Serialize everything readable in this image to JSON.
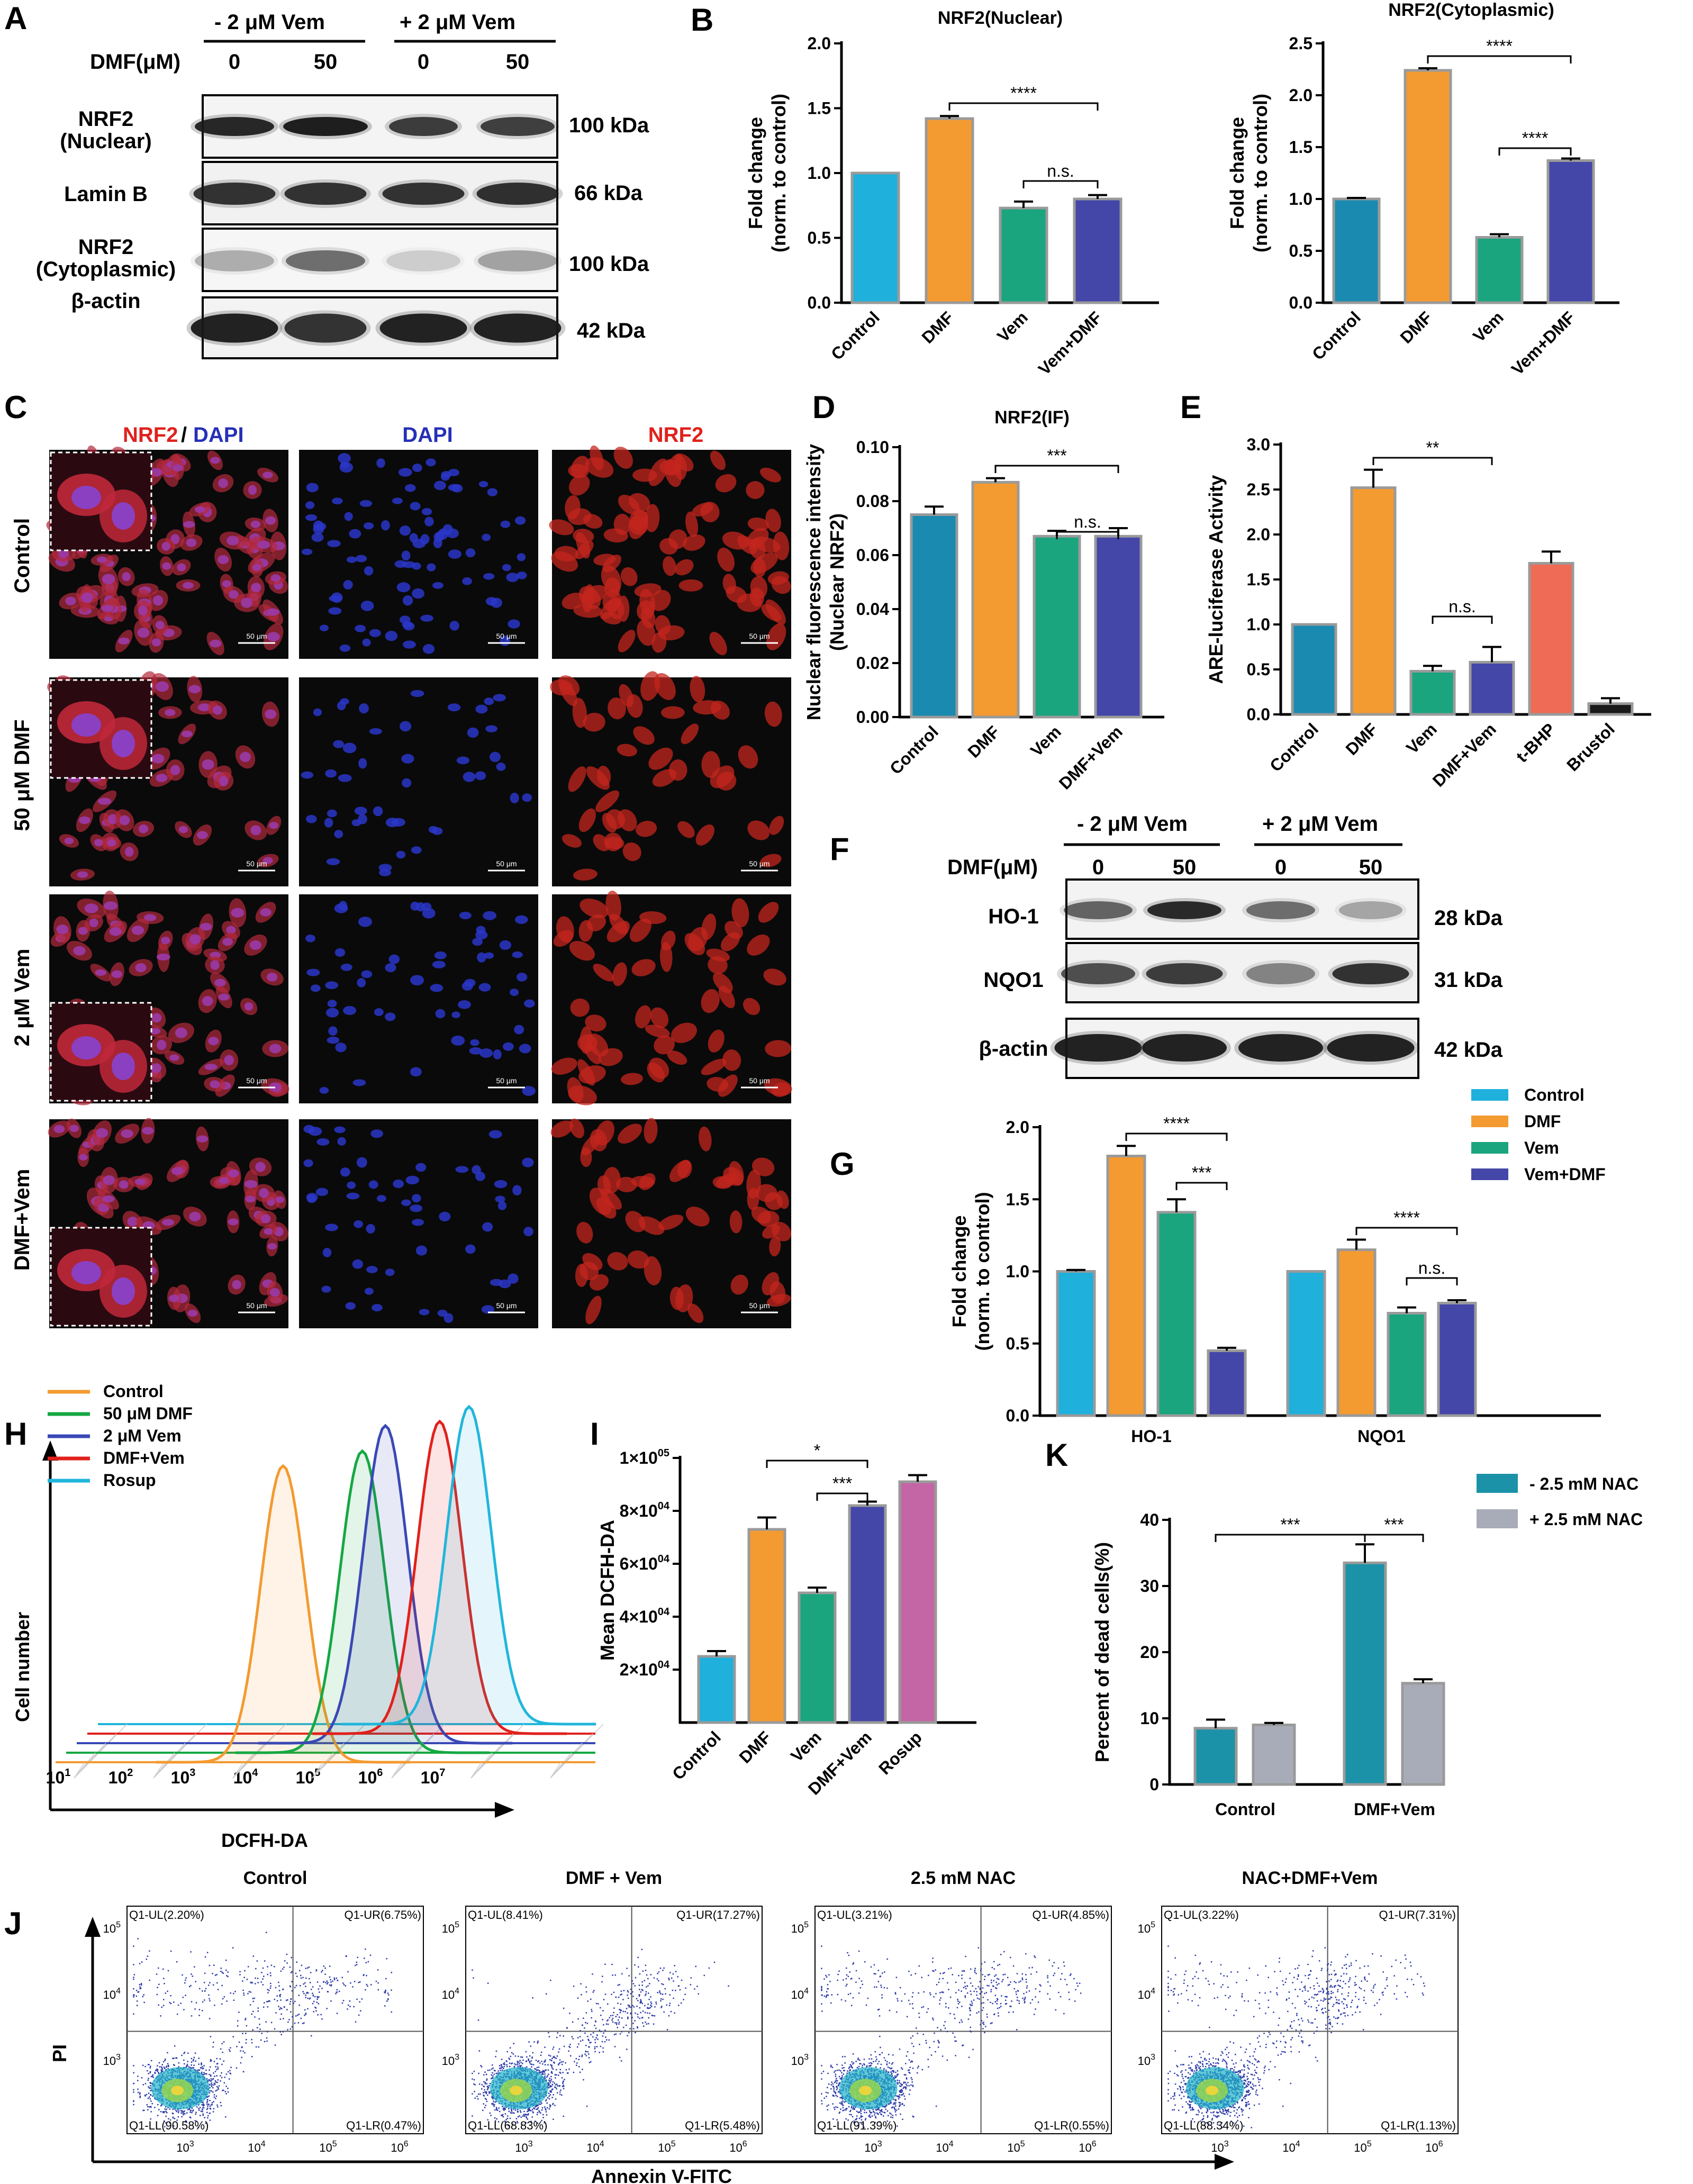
{
  "panels": {
    "A": "A",
    "B": "B",
    "C": "C",
    "D": "D",
    "E": "E",
    "F": "F",
    "G": "G",
    "H": "H",
    "I": "I",
    "J": "J",
    "K": "K"
  },
  "colors": {
    "control": "#1fb0dc",
    "dmf": "#f39a30",
    "vem": "#1aa57f",
    "vemdmf": "#4447a8",
    "tbhp": "#ef6b55",
    "brustol": "#1a1a1a",
    "rosup": "#c466a6",
    "control_dark": "#1a8ab0",
    "nac_minus": "#1b92a8",
    "nac_plus": "#a8acb8"
  },
  "blot_A": {
    "groups": [
      "- 2 μM Vem",
      "+ 2 μM Vem"
    ],
    "dmf_label": "DMF(μM)",
    "doses": [
      "0",
      "50",
      "0",
      "50"
    ],
    "rows": [
      {
        "label1": "NRF2",
        "label2": "(Nuclear)",
        "kda": "100 kDa"
      },
      {
        "label1": "Lamin B",
        "label2": "",
        "kda": "66 kDa"
      },
      {
        "label1": "NRF2",
        "label2": "(Cytoplasmic)",
        "kda": "100 kDa"
      },
      {
        "label1": "β-actin",
        "label2": "",
        "kda": "42 kDa"
      }
    ]
  },
  "blot_F": {
    "groups": [
      "- 2 μM Vem",
      "+ 2 μM Vem"
    ],
    "dmf_label": "DMF(μM)",
    "doses": [
      "0",
      "50",
      "0",
      "50"
    ],
    "rows": [
      {
        "label": "HO-1",
        "kda": "28 kDa"
      },
      {
        "label": "NQO1",
        "kda": "31 kDa"
      },
      {
        "label": "β-actin",
        "kda": "42 kDa"
      }
    ]
  },
  "micro_C": {
    "columns": [
      "NRF2",
      "/",
      "DAPI",
      "DAPI",
      "NRF2"
    ],
    "rows": [
      "Control",
      "50 μM DMF",
      "2 μM Vem",
      "DMF+Vem"
    ],
    "scale": "50 μm"
  },
  "chart_data": [
    {
      "id": "B1",
      "type": "bar",
      "title": "NRF2(Nuclear)",
      "ylabel": [
        "Fold change",
        "(norm. to control)"
      ],
      "categories": [
        "Control",
        "DMF",
        "Vem",
        "Vem+DMF"
      ],
      "values": [
        1.0,
        1.42,
        0.73,
        0.8
      ],
      "errors": [
        0,
        0.02,
        0.05,
        0.03
      ],
      "ylim": [
        0,
        2.0
      ],
      "ticks": [
        "0.0",
        "0.5",
        "1.0",
        "1.5",
        "2.0"
      ],
      "sig": [
        "****",
        "n.s."
      ]
    },
    {
      "id": "B2",
      "type": "bar",
      "title": "NRF2(Cytoplasmic)",
      "ylabel": [
        "Fold change",
        "(norm. to control)"
      ],
      "categories": [
        "Control",
        "DMF",
        "Vem",
        "Vem+DMF"
      ],
      "values": [
        1.0,
        2.24,
        0.63,
        1.37
      ],
      "errors": [
        0.01,
        0.02,
        0.03,
        0.02
      ],
      "ylim": [
        0,
        2.5
      ],
      "ticks": [
        "0.0",
        "0.5",
        "1.0",
        "1.5",
        "2.0",
        "2.5"
      ],
      "sig": [
        "****",
        "****"
      ]
    },
    {
      "id": "D",
      "type": "bar",
      "title": "NRF2(IF)",
      "ylabel": [
        "Nuclear fluorescence intensity",
        "(Nuclear NRF2)"
      ],
      "categories": [
        "Control",
        "DMF",
        "Vem",
        "DMF+Vem"
      ],
      "values": [
        0.075,
        0.087,
        0.067,
        0.067
      ],
      "errors": [
        0.003,
        0.0015,
        0.002,
        0.003
      ],
      "ylim": [
        0,
        0.1
      ],
      "ticks": [
        "0.00",
        "0.02",
        "0.04",
        "0.06",
        "0.08",
        "0.10"
      ],
      "sig": [
        "***",
        "n.s."
      ]
    },
    {
      "id": "E",
      "type": "bar",
      "title": "",
      "ylabel": [
        "ARE-luciferase Activity"
      ],
      "categories": [
        "Control",
        "DMF",
        "Vem",
        "DMF+Vem",
        "t-BHP",
        "Brustol"
      ],
      "values": [
        1.0,
        2.52,
        0.48,
        0.58,
        1.68,
        0.12
      ],
      "errors": [
        0,
        0.2,
        0.06,
        0.17,
        0.13,
        0.06
      ],
      "ylim": [
        0,
        3.0
      ],
      "ticks": [
        "0.0",
        "0.5",
        "1.0",
        "1.5",
        "2.0",
        "2.5",
        "3.0"
      ],
      "sig": [
        "**",
        "n.s."
      ]
    },
    {
      "id": "G",
      "type": "bar",
      "title": "",
      "ylabel": [
        "Fold change",
        "(norm. to control)"
      ],
      "categories": [
        "HO-1",
        "NQO1"
      ],
      "series": [
        {
          "name": "Control",
          "values": [
            1.0,
            1.0
          ],
          "errors": [
            0.01,
            0
          ]
        },
        {
          "name": "DMF",
          "values": [
            1.8,
            1.15
          ],
          "errors": [
            0.07,
            0.07
          ]
        },
        {
          "name": "Vem",
          "values": [
            1.41,
            0.71
          ],
          "errors": [
            0.09,
            0.04
          ]
        },
        {
          "name": "Vem+DMF",
          "values": [
            0.45,
            0.78
          ],
          "errors": [
            0.02,
            0.02
          ]
        }
      ],
      "ylim": [
        0,
        2.0
      ],
      "ticks": [
        "0.0",
        "0.5",
        "1.0",
        "1.5",
        "2.0"
      ],
      "sig": [
        "****",
        "***",
        "****",
        "n.s."
      ]
    },
    {
      "id": "H",
      "type": "line",
      "xlabel": "DCFH-DA",
      "ylabel": "Cell number",
      "series": [
        {
          "name": "Control",
          "peak_log": 4.6
        },
        {
          "name": "50 μM DMF",
          "peak_log": 5.7
        },
        {
          "name": "2 μM Vem",
          "peak_log": 5.9
        },
        {
          "name": "DMF+Vem",
          "peak_log": 6.6
        },
        {
          "name": "Rosup",
          "peak_log": 6.9
        }
      ],
      "xticks": [
        "10",
        "10",
        "10",
        "10",
        "10",
        "10",
        "10"
      ],
      "xexp": [
        "1",
        "2",
        "3",
        "4",
        "5",
        "6",
        "7"
      ]
    },
    {
      "id": "I",
      "type": "bar",
      "ylabel": "Mean DCFH-DA",
      "categories": [
        "Control",
        "DMF",
        "Vem",
        "DMF+Vem",
        "Rosup"
      ],
      "values": [
        25000,
        73000,
        49000,
        82000,
        91000
      ],
      "errors": [
        2000,
        4500,
        2000,
        1500,
        2500
      ],
      "ylim": [
        0,
        100000
      ],
      "ticks": [
        "2×10",
        "4×10",
        "6×10",
        "8×10",
        "1×10"
      ],
      "tickexp": [
        "04",
        "04",
        "04",
        "04",
        "05"
      ],
      "sig": [
        "*",
        "***"
      ]
    },
    {
      "id": "K",
      "type": "bar",
      "ylabel": "Percent of dead cells(%)",
      "categories": [
        "Control",
        "DMF+Vem"
      ],
      "series": [
        {
          "name": "-  2.5 mM NAC",
          "values": [
            8.5,
            33.5
          ],
          "errors": [
            1.3,
            2.8
          ]
        },
        {
          "name": "+ 2.5 mM NAC",
          "values": [
            9.0,
            15.3
          ],
          "errors": [
            0.3,
            0.6
          ]
        }
      ],
      "ylim": [
        0,
        40
      ],
      "ticks": [
        "0",
        "10",
        "20",
        "30",
        "40"
      ],
      "sig": [
        "***",
        "***"
      ]
    },
    {
      "id": "J",
      "type": "scatter",
      "xlabel": "Annexin V-FITC",
      "ylabel": "PI",
      "plots": [
        {
          "title": "Control",
          "ul": "Q1-UL(2.20%)",
          "ur": "Q1-UR(6.75%)",
          "ll": "Q1-LL(90.58%)",
          "lr": "Q1-LR(0.47%)"
        },
        {
          "title": "DMF + Vem",
          "ul": "Q1-UL(8.41%)",
          "ur": "Q1-UR(17.27%)",
          "ll": "Q1-LL(68.83%)",
          "lr": "Q1-LR(5.48%)"
        },
        {
          "title": "2.5 mM NAC",
          "ul": "Q1-UL(3.21%)",
          "ur": "Q1-UR(4.85%)",
          "ll": "Q1-LL(91.39%)",
          "lr": "Q1-LR(0.55%)"
        },
        {
          "title": "NAC+DMF+Vem",
          "ul": "Q1-UL(3.22%)",
          "ur": "Q1-UR(7.31%)",
          "ll": "Q1-LL(88.34%)",
          "lr": "Q1-LR(1.13%)"
        }
      ]
    }
  ]
}
